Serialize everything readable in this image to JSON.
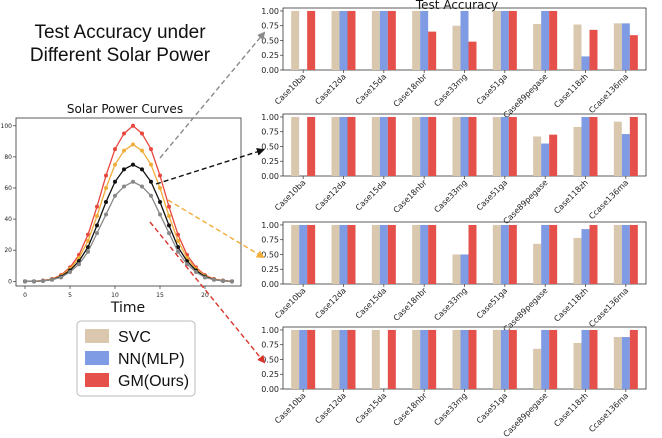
{
  "main_title": [
    "Test Accuracy under",
    "Different Solar Power"
  ],
  "chart_data": [
    {
      "type": "line",
      "title": "Solar Power Curves",
      "xlabel": "Time",
      "ylabel": "",
      "xlim": [
        -1,
        24
      ],
      "ylim": [
        -3,
        105
      ],
      "xticks": [
        0,
        5,
        10,
        15,
        20
      ],
      "yticks": [
        0,
        20,
        40,
        60,
        80,
        100
      ],
      "x": [
        0,
        1,
        2,
        3,
        4,
        5,
        6,
        7,
        8,
        9,
        10,
        11,
        12,
        13,
        14,
        15,
        16,
        17,
        18,
        19,
        20,
        21,
        22,
        23
      ],
      "series": [
        {
          "color": "#e8463c",
          "values": [
            0,
            0,
            0.5,
            1.5,
            4,
            9,
            17,
            30,
            48,
            68,
            85,
            95,
            100,
            95,
            85,
            68,
            48,
            30,
            17,
            9,
            4,
            1.5,
            0.5,
            0
          ]
        },
        {
          "color": "#f0ad3a",
          "values": [
            0,
            0,
            0.4,
            1.3,
            3.5,
            8,
            15,
            26,
            42,
            60,
            75,
            84,
            88,
            84,
            75,
            60,
            42,
            26,
            15,
            8,
            3.5,
            1.3,
            0.4,
            0
          ]
        },
        {
          "color": "#111111",
          "values": [
            0,
            0,
            0.3,
            1.1,
            3,
            7,
            13,
            22,
            36,
            51,
            64,
            72,
            75,
            72,
            64,
            51,
            36,
            22,
            13,
            7,
            3,
            1.1,
            0.3,
            0
          ]
        },
        {
          "color": "#888888",
          "values": [
            0,
            0,
            0.3,
            1,
            2.5,
            6,
            11,
            19,
            31,
            43,
            55,
            61,
            64,
            61,
            55,
            43,
            31,
            19,
            11,
            6,
            2.5,
            1,
            0.3,
            0
          ]
        }
      ]
    },
    {
      "type": "bar",
      "title": "Test Accuracy",
      "categories": [
        "Case10ba",
        "Case12da",
        "Case15da",
        "Case18nbr",
        "Case33mg",
        "Case51ga",
        "Case89pegase",
        "Case118zh",
        "Ccase136ma"
      ],
      "yticks": [
        "0.00",
        "0.25",
        "0.50",
        "0.75",
        "1.00"
      ],
      "ylim": [
        0,
        1.05
      ],
      "series": [
        {
          "values": [
            1,
            1,
            1,
            1,
            0.75,
            1,
            0.78,
            0.77,
            0.79
          ]
        },
        {
          "values": [
            0,
            1,
            1,
            1,
            1,
            1,
            1,
            0.23,
            0.79
          ]
        },
        {
          "values": [
            1,
            1,
            1,
            0.65,
            0.48,
            1,
            1,
            0.68,
            0.59
          ]
        }
      ]
    },
    {
      "type": "bar",
      "title": "",
      "categories": [
        "Case10ba",
        "Case12da",
        "Case15da",
        "Case18nbr",
        "Case33mg",
        "Case51ga",
        "Case89pegase",
        "Case118zh",
        "Ccase136ma"
      ],
      "yticks": [
        "0.00",
        "0.25",
        "0.50",
        "0.75",
        "1.00"
      ],
      "ylim": [
        0,
        1.05
      ],
      "series": [
        {
          "values": [
            1,
            1,
            1,
            1,
            1,
            1,
            0.67,
            0.83,
            0.92
          ]
        },
        {
          "values": [
            0,
            1,
            1,
            1,
            1,
            1,
            0.55,
            1,
            0.71
          ]
        },
        {
          "values": [
            1,
            1,
            1,
            1,
            1,
            1,
            0.7,
            1,
            1
          ]
        }
      ]
    },
    {
      "type": "bar",
      "title": "",
      "categories": [
        "Case10ba",
        "Case12da",
        "Case15da",
        "Case18nbr",
        "Case33mg",
        "Case51ga",
        "Case89pegase",
        "Case118zh",
        "Ccase136ma"
      ],
      "yticks": [
        "0.00",
        "0.25",
        "0.50",
        "0.75",
        "1.00"
      ],
      "ylim": [
        0,
        1.05
      ],
      "series": [
        {
          "values": [
            1,
            1,
            1,
            1,
            0.5,
            1,
            0.68,
            0.78,
            1
          ]
        },
        {
          "values": [
            1,
            1,
            1,
            1,
            0.5,
            1,
            1,
            0.93,
            1
          ]
        },
        {
          "values": [
            1,
            1,
            1,
            1,
            1,
            1,
            1,
            1,
            1
          ]
        }
      ]
    },
    {
      "type": "bar",
      "title": "",
      "categories": [
        "Case10ba",
        "Case12da",
        "Case15da",
        "Case18nbr",
        "Case33mg",
        "Case51ga",
        "Case89pegase",
        "Case118zh",
        "Ccase136ma"
      ],
      "yticks": [
        "0.00",
        "0.25",
        "0.50",
        "0.75",
        "1.00"
      ],
      "ylim": [
        0,
        1.05
      ],
      "series": [
        {
          "values": [
            1,
            1,
            1,
            1,
            1,
            1,
            0.68,
            0.78,
            0.88
          ]
        },
        {
          "values": [
            1,
            1,
            0,
            1,
            1,
            1,
            1,
            1,
            0.88
          ]
        },
        {
          "values": [
            1,
            1,
            1,
            1,
            1,
            1,
            1,
            1,
            1
          ]
        }
      ]
    }
  ],
  "legend": {
    "items": [
      {
        "label": "SVC",
        "color": "#d9c8ae"
      },
      {
        "label": "NN(MLP)",
        "color": "#7f9be3"
      },
      {
        "label": "GM(Ours)",
        "color": "#e5504a"
      }
    ]
  },
  "arrows": [
    {
      "color": "#8a8a8a"
    },
    {
      "color": "#111111"
    },
    {
      "color": "#f0ad3a"
    },
    {
      "color": "#d9342b"
    }
  ]
}
